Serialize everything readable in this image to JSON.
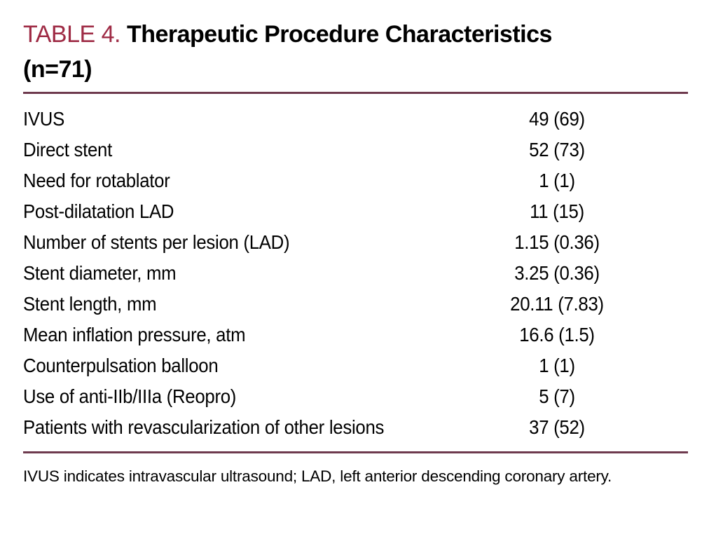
{
  "header": {
    "table_label": "TABLE 4.",
    "title": "Therapeutic Procedure Characteristics",
    "n_label": "(n=71)"
  },
  "rows": [
    {
      "label": "IVUS",
      "value": "49 (69)"
    },
    {
      "label": "Direct stent",
      "value": "52 (73)"
    },
    {
      "label": "Need for rotablator",
      "value": "1 (1)"
    },
    {
      "label": "Post-dilatation LAD",
      "value": "11 (15)"
    },
    {
      "label": "Number of stents per lesion (LAD)",
      "value": "1.15 (0.36)"
    },
    {
      "label": "Stent diameter, mm",
      "value": "3.25 (0.36)"
    },
    {
      "label": "Stent length, mm",
      "value": "20.11 (7.83)"
    },
    {
      "label": "Mean inflation pressure, atm",
      "value": "16.6 (1.5)"
    },
    {
      "label": "Counterpulsation balloon",
      "value": "1 (1)"
    },
    {
      "label": "Use of anti-IIb/IIIa (Reopro)",
      "value": "5 (7)"
    },
    {
      "label": "Patients with revascularization of other lesions",
      "value": "37 (52)"
    }
  ],
  "footnote": "IVUS indicates intravascular ultrasound; LAD, left anterior descending coronary artery.",
  "colors": {
    "accent_red": "#9e2a44",
    "rule_maroon": "#6e3a4e",
    "text": "#000000",
    "background": "#ffffff"
  }
}
